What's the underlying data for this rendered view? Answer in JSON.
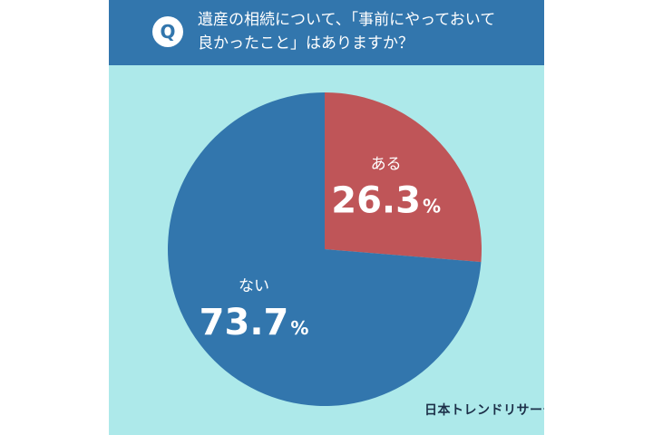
{
  "header": {
    "badge": "Q",
    "question_line1": "遺産の相続について、「事前にやっておいて",
    "question_line2": "良かったこと」はありますか？"
  },
  "chart_data": {
    "type": "pie",
    "title": "遺産の相続について、「事前にやっておいて良かったこと」はありますか？",
    "slices": [
      {
        "label": "ある",
        "value": 26.3,
        "display": "26.3",
        "unit": "%",
        "color": "#bf5558"
      },
      {
        "label": "ない",
        "value": 73.7,
        "display": "73.7",
        "unit": "%",
        "color": "#3276ad"
      }
    ],
    "start": "12 o'clock",
    "direction": "clockwise"
  },
  "colors": {
    "background": "#ade9ea",
    "header": "#3276ad",
    "text_on_dark": "#ffffff",
    "logo": "#1c2f48"
  },
  "logo": {
    "text": "日本トレンドリサーチ"
  }
}
